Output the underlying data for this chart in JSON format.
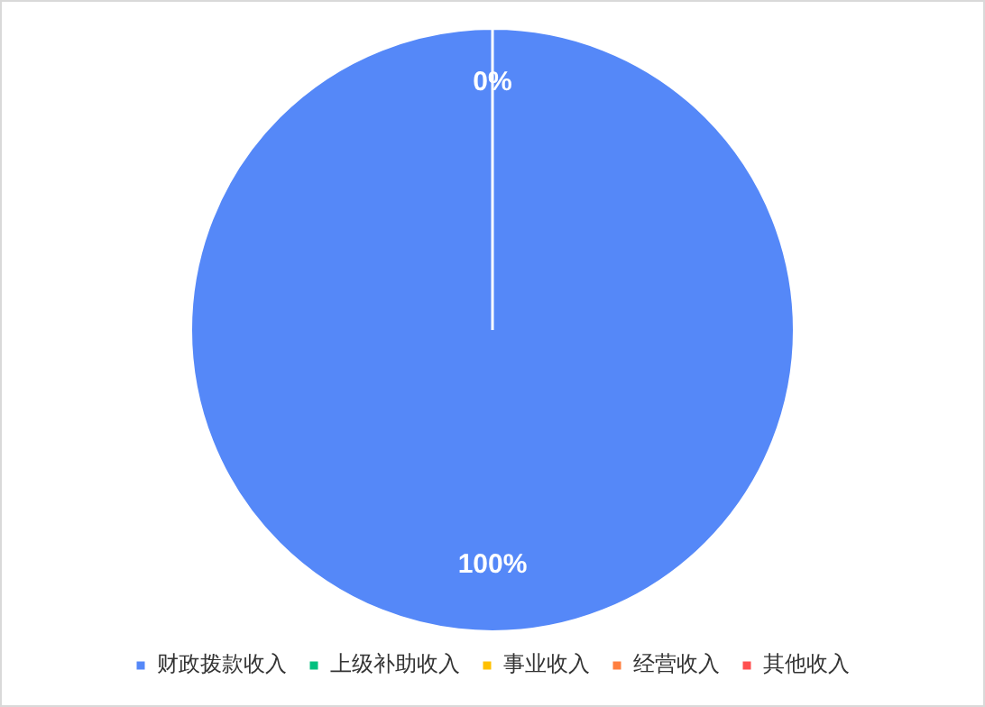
{
  "chart_data": {
    "type": "pie",
    "categories": [
      "财政拨款收入",
      "上级补助收入",
      "事业收入",
      "经营收入",
      "其他收入"
    ],
    "values": [
      100,
      0,
      0,
      0,
      0
    ],
    "colors": [
      "#5588f8",
      "#00c07f",
      "#ffc000",
      "#ff7f3f",
      "#ff5050"
    ],
    "value_labels": [
      "100%",
      "0%",
      null,
      null,
      null
    ],
    "legend": "bottom"
  }
}
